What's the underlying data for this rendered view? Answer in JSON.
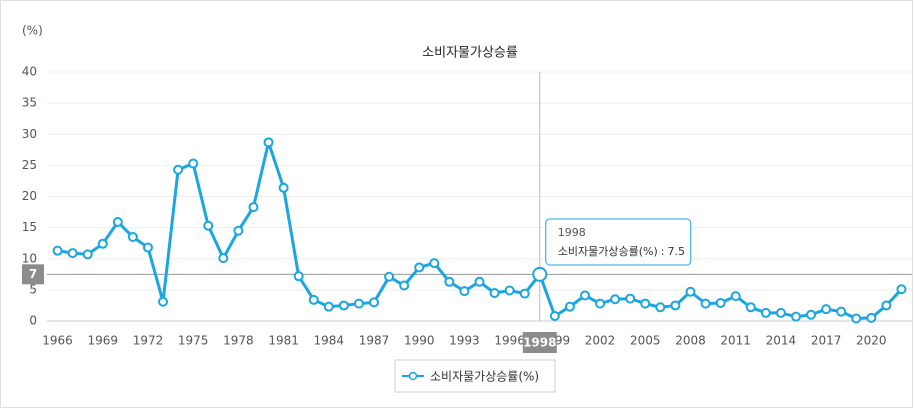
{
  "chart_data": {
    "type": "line",
    "title": "소비자물가상승률",
    "y_unit_label": "(%)",
    "x": [
      1966,
      1967,
      1968,
      1969,
      1970,
      1971,
      1972,
      1973,
      1974,
      1975,
      1976,
      1977,
      1978,
      1979,
      1980,
      1981,
      1982,
      1983,
      1984,
      1985,
      1986,
      1987,
      1988,
      1989,
      1990,
      1991,
      1992,
      1993,
      1994,
      1995,
      1996,
      1997,
      1998,
      1999,
      2000,
      2001,
      2002,
      2003,
      2004,
      2005,
      2006,
      2007,
      2008,
      2009,
      2010,
      2011,
      2012,
      2013,
      2014,
      2015,
      2016,
      2017,
      2018,
      2019,
      2020,
      2021,
      2022
    ],
    "series": [
      {
        "name": "소비자물가상승률(%)",
        "color": "#1ba6e1",
        "values": [
          11.3,
          10.9,
          10.7,
          12.4,
          15.9,
          13.5,
          11.8,
          3.1,
          24.3,
          25.3,
          15.3,
          10.1,
          14.5,
          18.3,
          28.7,
          21.4,
          7.2,
          3.4,
          2.3,
          2.5,
          2.8,
          3.0,
          7.1,
          5.7,
          8.6,
          9.3,
          6.3,
          4.8,
          6.3,
          4.5,
          4.9,
          4.4,
          7.5,
          0.8,
          2.3,
          4.1,
          2.8,
          3.5,
          3.6,
          2.8,
          2.2,
          2.5,
          4.7,
          2.8,
          2.9,
          4.0,
          2.2,
          1.3,
          1.3,
          0.7,
          1.0,
          1.9,
          1.5,
          0.4,
          0.5,
          2.5,
          5.1
        ]
      }
    ],
    "xlim": [
      1965.3,
      2022.7
    ],
    "xticks": [
      1966,
      1969,
      1972,
      1975,
      1978,
      1981,
      1984,
      1987,
      1990,
      1993,
      1996,
      1999,
      2002,
      2005,
      2008,
      2011,
      2014,
      2017,
      2020
    ],
    "ylim": [
      0,
      40
    ],
    "yticks": [
      0,
      5,
      10,
      15,
      20,
      25,
      30,
      35,
      40
    ],
    "grid": true,
    "legend": "bottom",
    "tooltip": {
      "title": "1998",
      "series_name": "소비자물가상승률(%)",
      "separator": ":",
      "value": 7.5
    },
    "crosshair": {
      "x_label": "1998",
      "y_label": "7"
    }
  }
}
